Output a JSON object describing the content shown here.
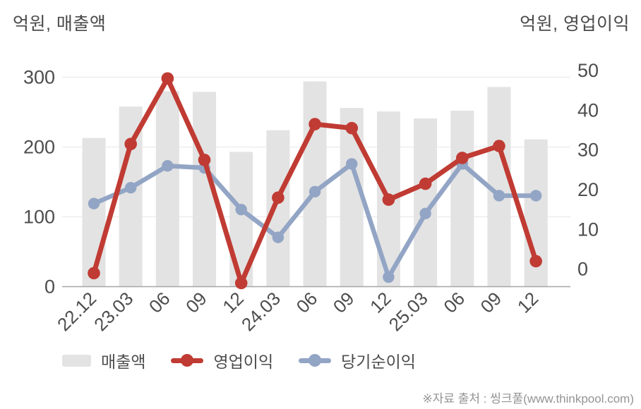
{
  "chart_data": {
    "type": "combo",
    "categories": [
      "22.12",
      "23.03",
      "06",
      "09",
      "12",
      "24.03",
      "06",
      "09",
      "12",
      "25.03",
      "06",
      "09",
      "12"
    ],
    "series": [
      {
        "name": "매출액",
        "type": "bar",
        "axis": "left",
        "color": "#e3e3e3",
        "values": [
          213,
          258,
          280,
          279,
          193,
          224,
          294,
          256,
          251,
          241,
          252,
          286,
          211
        ]
      },
      {
        "name": "영업이익",
        "type": "line",
        "axis": "right",
        "color": "#c03b33",
        "values": [
          -1,
          31.5,
          48,
          27.5,
          -3.5,
          18,
          36.5,
          35.5,
          17.5,
          21.5,
          28,
          31,
          2
        ]
      },
      {
        "name": "당기순이익",
        "type": "line",
        "axis": "right",
        "color": "#93a5c5",
        "values": [
          16.5,
          20.5,
          26,
          25.5,
          15,
          8,
          19.5,
          26.5,
          -2,
          14,
          26.5,
          18.5,
          18.5
        ]
      }
    ],
    "left_axis": {
      "title": "억원, 매출액",
      "ticks": [
        0,
        100,
        200,
        300
      ],
      "range": [
        0,
        300
      ]
    },
    "right_axis": {
      "title": "억원, 영업이익",
      "ticks": [
        0,
        10,
        20,
        30,
        40,
        50
      ],
      "range": [
        -4.5,
        54.5
      ]
    },
    "grid": "horizontal",
    "legend_position": "bottom",
    "colors": {
      "grid_line": "#e7e7e7",
      "axis_line": "#a6a6a6",
      "tick_text": "#4d4d4d"
    }
  },
  "footer": {
    "source_note": "※자료 출처 : 씽크풀(www.thinkpool.com)"
  }
}
